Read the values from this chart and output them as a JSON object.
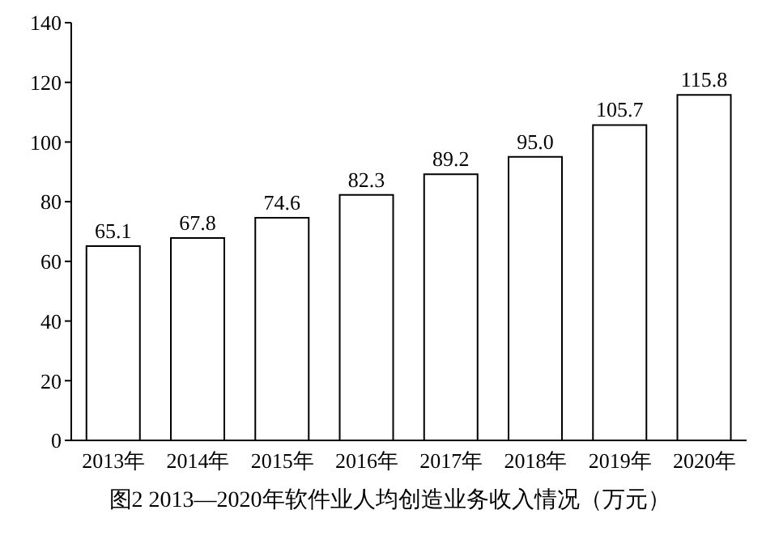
{
  "chart_data": {
    "type": "bar",
    "title": "图2 2013—2020年软件业人均创造业务收入情况（万元）",
    "categories": [
      "2013年",
      "2014年",
      "2015年",
      "2016年",
      "2017年",
      "2018年",
      "2019年",
      "2020年"
    ],
    "values": [
      65.1,
      67.8,
      74.6,
      82.3,
      89.2,
      95.0,
      105.7,
      115.8
    ],
    "value_labels": [
      "65.1",
      "67.8",
      "74.6",
      "82.3",
      "89.2",
      "95.0",
      "105.7",
      "115.8"
    ],
    "color": "#ffffff",
    "ylim": [
      0,
      140
    ],
    "yticks": [
      0,
      20,
      40,
      60,
      80,
      100,
      120,
      140
    ],
    "grid": false,
    "legend": false
  }
}
